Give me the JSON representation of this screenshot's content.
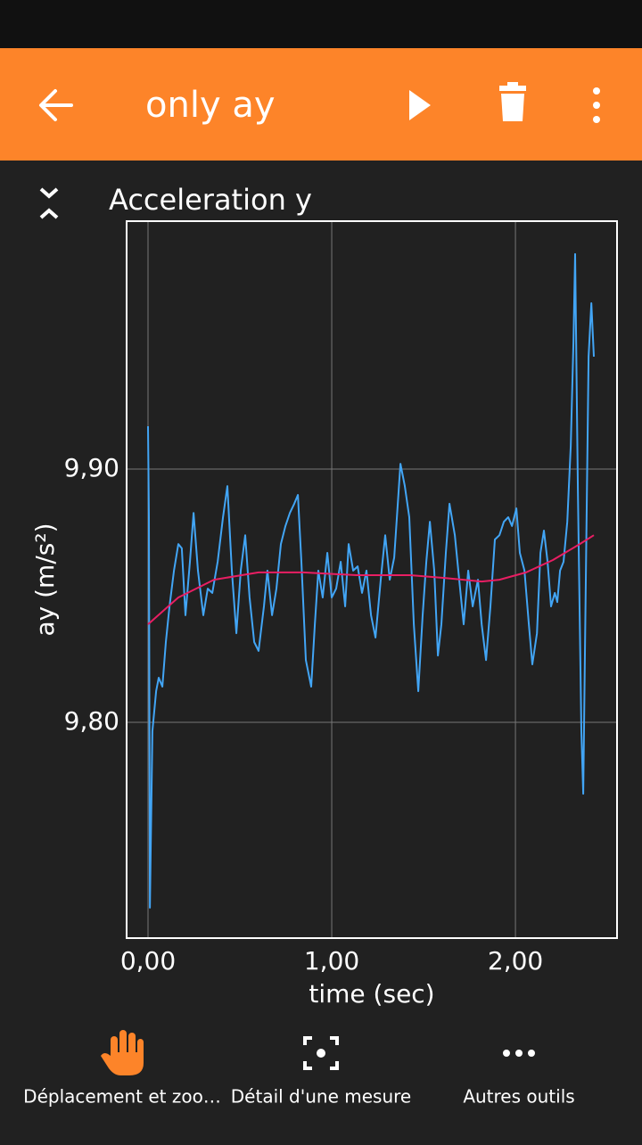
{
  "app_bar": {
    "title": "only ay"
  },
  "chart_data": {
    "type": "line",
    "title": "Acceleration y",
    "x_label": "time (sec)",
    "y_label": "ay (m/s²)",
    "xlim": [
      -0.1165,
      2.553
    ],
    "ylim": [
      9.7148,
      9.9979
    ],
    "xticks": [
      {
        "value": 0,
        "label": "0,00"
      },
      {
        "value": 1,
        "label": "1,00"
      },
      {
        "value": 2,
        "label": "2,00"
      }
    ],
    "yticks": [
      {
        "value": 9.8,
        "label": "9,80"
      },
      {
        "value": 9.9,
        "label": "9,90"
      }
    ],
    "grid": true,
    "series": [
      {
        "color": "#42a5f5",
        "x": [
          0,
          0.005,
          0.01,
          0.024,
          0.044,
          0.058,
          0.078,
          0.097,
          0.117,
          0.141,
          0.165,
          0.184,
          0.204,
          0.228,
          0.248,
          0.272,
          0.301,
          0.325,
          0.35,
          0.379,
          0.408,
          0.432,
          0.456,
          0.481,
          0.505,
          0.529,
          0.553,
          0.578,
          0.602,
          0.631,
          0.65,
          0.675,
          0.699,
          0.723,
          0.748,
          0.772,
          0.796,
          0.816,
          0.835,
          0.859,
          0.888,
          0.908,
          0.927,
          0.951,
          0.976,
          1,
          1.024,
          1.049,
          1.073,
          1.092,
          1.117,
          1.141,
          1.165,
          1.189,
          1.214,
          1.238,
          1.267,
          1.291,
          1.316,
          1.34,
          1.374,
          1.398,
          1.422,
          1.447,
          1.471,
          1.495,
          1.515,
          1.534,
          1.558,
          1.578,
          1.597,
          1.621,
          1.641,
          1.67,
          1.694,
          1.718,
          1.743,
          1.767,
          1.796,
          1.816,
          1.84,
          1.864,
          1.888,
          1.913,
          1.937,
          1.961,
          1.981,
          2.005,
          2.024,
          2.049,
          2.073,
          2.092,
          2.117,
          2.136,
          2.155,
          2.175,
          2.194,
          2.214,
          2.228,
          2.243,
          2.262,
          2.282,
          2.301,
          2.316,
          2.325,
          2.34,
          2.359,
          2.369,
          2.383,
          2.398,
          2.413,
          2.427
        ],
        "values": [
          9.9169,
          9.881,
          9.7268,
          9.7965,
          9.8123,
          9.8176,
          9.8141,
          9.8317,
          9.8458,
          9.8599,
          9.8704,
          9.8687,
          9.8423,
          9.8634,
          9.8827,
          9.8599,
          9.8423,
          9.8528,
          9.8511,
          9.8634,
          9.881,
          9.8933,
          9.8599,
          9.8352,
          9.8599,
          9.8739,
          9.8493,
          9.8317,
          9.8282,
          9.8458,
          9.8599,
          9.8423,
          9.8528,
          9.8704,
          9.8775,
          9.8827,
          9.8863,
          9.8898,
          9.8634,
          9.8246,
          9.8141,
          9.8387,
          9.8599,
          9.8493,
          9.8669,
          9.8493,
          9.8528,
          9.8634,
          9.8458,
          9.8704,
          9.8599,
          9.8616,
          9.8511,
          9.8599,
          9.8423,
          9.8335,
          9.8563,
          9.8739,
          9.8563,
          9.8651,
          9.9021,
          9.8933,
          9.881,
          9.8387,
          9.8123,
          9.8423,
          9.8634,
          9.8792,
          9.8599,
          9.8264,
          9.8387,
          9.8669,
          9.8863,
          9.8739,
          9.8563,
          9.8387,
          9.8599,
          9.8458,
          9.8563,
          9.8387,
          9.8246,
          9.8458,
          9.8722,
          9.8739,
          9.8792,
          9.881,
          9.8775,
          9.8845,
          9.8669,
          9.8599,
          9.8387,
          9.8229,
          9.8352,
          9.8669,
          9.8757,
          9.8634,
          9.8458,
          9.8511,
          9.8475,
          9.8599,
          9.8634,
          9.8792,
          9.9092,
          9.9514,
          9.9849,
          9.8915,
          9.7965,
          9.7718,
          9.8563,
          9.9444,
          9.9655,
          9.9444
        ]
      },
      {
        "color": "#e91e63",
        "x": [
          0,
          0.165,
          0.359,
          0.602,
          0.845,
          1.136,
          1.427,
          1.621,
          1.816,
          1.913,
          2.058,
          2.204,
          2.35,
          2.427
        ],
        "values": [
          9.8387,
          9.8493,
          9.8563,
          9.8592,
          9.8592,
          9.8581,
          9.8581,
          9.857,
          9.8556,
          9.8563,
          9.8592,
          9.8641,
          9.8704,
          9.8739
        ]
      }
    ]
  },
  "toolbar": {
    "items": [
      "Déplacement et zoo…",
      "Détail d'une mesure",
      "Autres outils"
    ]
  }
}
